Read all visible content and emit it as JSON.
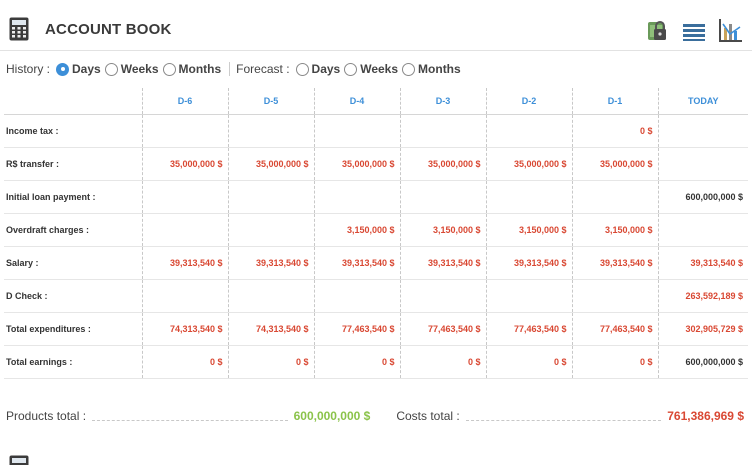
{
  "header": {
    "title": "ACCOUNT BOOK",
    "icons": [
      "calculator-icon",
      "lock-icon",
      "list-icon",
      "chart-icon"
    ]
  },
  "filters": {
    "history_label": "History :",
    "forecast_label": "Forecast :",
    "history": [
      {
        "label": "Days",
        "selected": true
      },
      {
        "label": "Weeks",
        "selected": false
      },
      {
        "label": "Months",
        "selected": false
      }
    ],
    "forecast": [
      {
        "label": "Days",
        "selected": false
      },
      {
        "label": "Weeks",
        "selected": false
      },
      {
        "label": "Months",
        "selected": false
      }
    ]
  },
  "table": {
    "columns": [
      "D-6",
      "D-5",
      "D-4",
      "D-3",
      "D-2",
      "D-1",
      "TODAY"
    ],
    "rows": [
      {
        "label": "Income tax :",
        "cells": [
          "",
          "",
          "",
          "",
          "",
          "0 $",
          ""
        ]
      },
      {
        "label": "R$ transfer :",
        "cells": [
          "35,000,000 $",
          "35,000,000 $",
          "35,000,000 $",
          "35,000,000 $",
          "35,000,000 $",
          "35,000,000 $",
          ""
        ]
      },
      {
        "label": "Initial loan payment :",
        "cells": [
          "",
          "",
          "",
          "",
          "",
          "",
          "600,000,000 $"
        ]
      },
      {
        "label": "Overdraft charges :",
        "cells": [
          "",
          "",
          "3,150,000 $",
          "3,150,000 $",
          "3,150,000 $",
          "3,150,000 $",
          ""
        ]
      },
      {
        "label": "Salary :",
        "cells": [
          "39,313,540 $",
          "39,313,540 $",
          "39,313,540 $",
          "39,313,540 $",
          "39,313,540 $",
          "39,313,540 $",
          "39,313,540 $"
        ]
      },
      {
        "label": "D Check :",
        "cells": [
          "",
          "",
          "",
          "",
          "",
          "",
          "263,592,189 $"
        ]
      },
      {
        "label": "Total expenditures :",
        "cells": [
          "74,313,540 $",
          "74,313,540 $",
          "77,463,540 $",
          "77,463,540 $",
          "77,463,540 $",
          "77,463,540 $",
          "302,905,729 $"
        ]
      },
      {
        "label": "Total earnings :",
        "cells": [
          "0 $",
          "0 $",
          "0 $",
          "0 $",
          "0 $",
          "0 $",
          "600,000,000 $"
        ]
      }
    ],
    "today_red_rows": [
      4,
      5,
      6
    ]
  },
  "totals": {
    "products_label": "Products total :",
    "products_value": "600,000,000 $",
    "costs_label": "Costs total :",
    "costs_value": "761,386,969 $"
  },
  "colors": {
    "accent_blue": "#3d8fd8",
    "negative_red": "#d94833",
    "positive_green": "#8bc34a"
  }
}
